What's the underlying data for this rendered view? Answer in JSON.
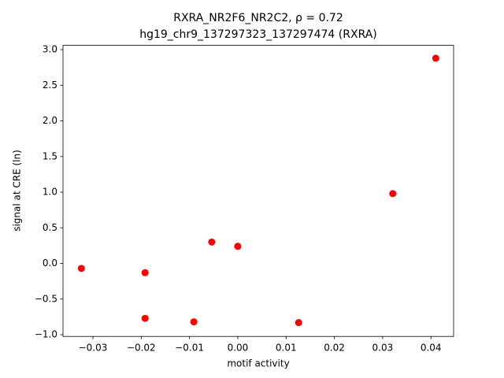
{
  "chart_data": {
    "type": "scatter",
    "title": "RXRA_NR2F6_NR2C2, ρ = 0.72",
    "subtitle": "hg19_chr9_137297323_137297474 (RXRA)",
    "x_label": "motif activity",
    "y_label": "signal at CRE (ln)",
    "color": "#ff0000",
    "x": [
      -0.0324,
      -0.0192,
      -0.0192,
      -0.0091,
      -0.0054,
      0.0,
      0.0126,
      0.0321,
      0.041
    ],
    "values": [
      -0.07,
      -0.13,
      -0.77,
      -0.82,
      0.3,
      0.24,
      -0.83,
      0.98,
      2.88
    ],
    "xlim": [
      -0.0362,
      0.0447
    ],
    "ylim": [
      -1.024,
      3.06
    ],
    "xticks": [
      {
        "value": -0.03,
        "label": "−0.03"
      },
      {
        "value": -0.02,
        "label": "−0.02"
      },
      {
        "value": -0.01,
        "label": "−0.01"
      },
      {
        "value": 0,
        "label": "0.00"
      },
      {
        "value": 0.01,
        "label": "0.01"
      },
      {
        "value": 0.02,
        "label": "0.02"
      },
      {
        "value": 0.03,
        "label": "0.03"
      },
      {
        "value": 0.04,
        "label": "0.04"
      }
    ],
    "yticks": [
      {
        "value": -1,
        "label": "−1.0"
      },
      {
        "value": -0.5,
        "label": "−0.5"
      },
      {
        "value": 0,
        "label": "0.0"
      },
      {
        "value": 0.5,
        "label": "0.5"
      },
      {
        "value": 1,
        "label": "1.0"
      },
      {
        "value": 1.5,
        "label": "1.5"
      },
      {
        "value": 2,
        "label": "2.0"
      },
      {
        "value": 2.5,
        "label": "2.5"
      },
      {
        "value": 3,
        "label": "3.0"
      }
    ]
  }
}
